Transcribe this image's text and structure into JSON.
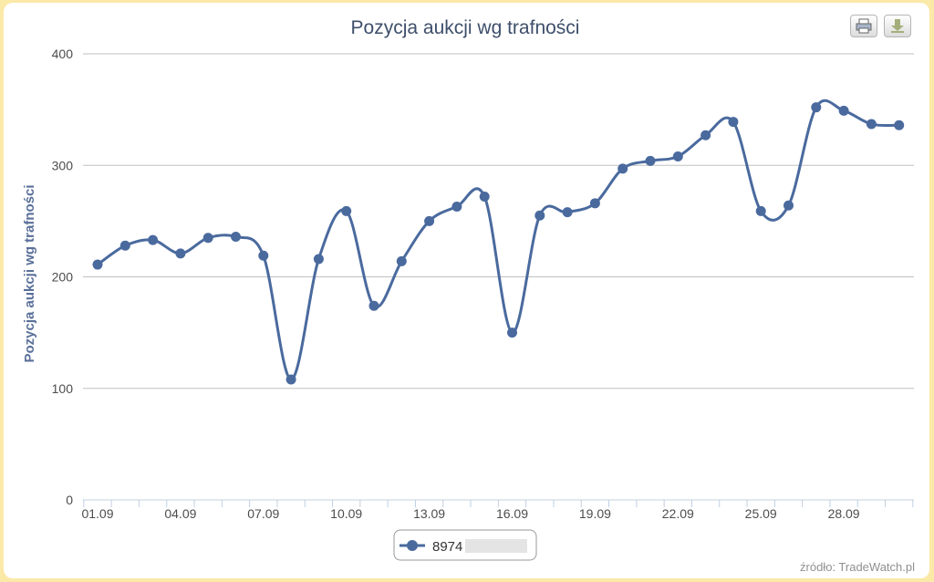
{
  "chart_data": {
    "type": "line",
    "title": "Pozycja aukcji wg trafności",
    "xlabel": "",
    "ylabel": "Pozycja aukcji wg trafności",
    "ylim": [
      0,
      400
    ],
    "yticks": [
      0,
      100,
      200,
      300,
      400
    ],
    "xtick_labels": [
      "01.09",
      "04.09",
      "07.09",
      "10.09",
      "13.09",
      "16.09",
      "19.09",
      "22.09",
      "25.09",
      "28.09"
    ],
    "x": [
      "01.09",
      "02.09",
      "03.09",
      "04.09",
      "05.09",
      "06.09",
      "07.09",
      "08.09",
      "09.09",
      "10.09",
      "11.09",
      "12.09",
      "13.09",
      "14.09",
      "15.09",
      "16.09",
      "17.09",
      "18.09",
      "19.09",
      "20.09",
      "21.09",
      "22.09",
      "23.09",
      "24.09",
      "25.09",
      "26.09",
      "27.09",
      "28.09",
      "29.09",
      "30.09"
    ],
    "series": [
      {
        "name": "8974",
        "color": "#4a6a9e",
        "values": [
          211,
          228,
          233,
          221,
          235,
          236,
          219,
          108,
          216,
          259,
          174,
          214,
          250,
          263,
          272,
          150,
          255,
          258,
          266,
          297,
          304,
          308,
          327,
          339,
          259,
          264,
          352,
          349,
          337,
          336
        ]
      }
    ],
    "legend_position": "bottom-center",
    "grid": true,
    "credit": "źródło: TradeWatch.pl"
  },
  "icons": {
    "print": "print-icon",
    "download": "download-icon"
  },
  "colors": {
    "page_background": "#fbe9a8",
    "series_line": "#4a6a9e",
    "title": "#3e4f6b",
    "ylabel": "#5a7099"
  }
}
